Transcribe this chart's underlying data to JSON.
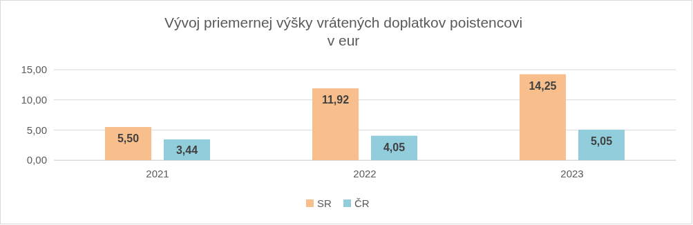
{
  "chart_data": {
    "type": "bar",
    "title": "Vývoj priemernej výšky vrátených doplatkov poistencovi\nv eur",
    "categories": [
      "2021",
      "2022",
      "2023"
    ],
    "series": [
      {
        "name": "SR",
        "color": "#f8bf8c",
        "values": [
          5.5,
          11.92,
          14.25
        ],
        "value_labels": [
          "5,50",
          "11,92",
          "14,25"
        ]
      },
      {
        "name": "ČR",
        "color": "#92cddc",
        "values": [
          3.44,
          4.05,
          5.05
        ],
        "value_labels": [
          "3,44",
          "4,05",
          "5,05"
        ]
      }
    ],
    "ylim": [
      0,
      15
    ],
    "yticks": [
      {
        "value": 0,
        "label": "0,00"
      },
      {
        "value": 5,
        "label": "5,00"
      },
      {
        "value": 10,
        "label": "10,00"
      },
      {
        "value": 15,
        "label": "15,00"
      }
    ],
    "grid": "y",
    "legend": "bottom"
  }
}
